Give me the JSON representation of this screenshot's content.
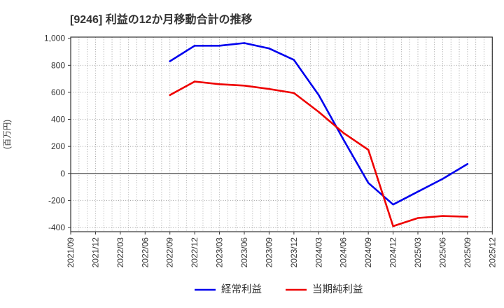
{
  "chart_data": {
    "type": "line",
    "title": "[9246]  利益の12か月移動合計の推移",
    "ylabel": "(百万円)",
    "xlabel": "",
    "categories": [
      "2021/09",
      "2021/12",
      "2022/03",
      "2022/06",
      "2022/09",
      "2022/12",
      "2023/03",
      "2023/06",
      "2023/09",
      "2023/12",
      "2024/03",
      "2024/06",
      "2024/09",
      "2024/12",
      "2025/03",
      "2025/06",
      "2025/09",
      "2025/12"
    ],
    "y_ticks": [
      1000,
      800,
      600,
      400,
      200,
      0,
      -200,
      -400
    ],
    "y_tick_labels": [
      "1,000",
      "800",
      "600",
      "400",
      "200",
      "0",
      "-200",
      "-400"
    ],
    "ylim": [
      -430,
      1000
    ],
    "grid": {
      "horizontal_major": true,
      "vertical_minor_monthly": true,
      "style": "dotted",
      "zero_line": "solid"
    },
    "legend_position": "bottom-center",
    "series": [
      {
        "name": "経常利益",
        "color": "#0000ee",
        "values": [
          null,
          null,
          null,
          null,
          830,
          945,
          945,
          965,
          925,
          840,
          580,
          250,
          -70,
          -230,
          -135,
          -40,
          70,
          null
        ]
      },
      {
        "name": "当期純利益",
        "color": "#ee0000",
        "values": [
          null,
          null,
          null,
          null,
          580,
          680,
          660,
          650,
          625,
          595,
          455,
          300,
          175,
          -390,
          -330,
          -315,
          -320,
          null
        ]
      }
    ]
  },
  "colors": {
    "grid": "#999999",
    "border": "#333333",
    "zero_line": "#555555",
    "text": "#333333",
    "background": "#ffffff"
  }
}
